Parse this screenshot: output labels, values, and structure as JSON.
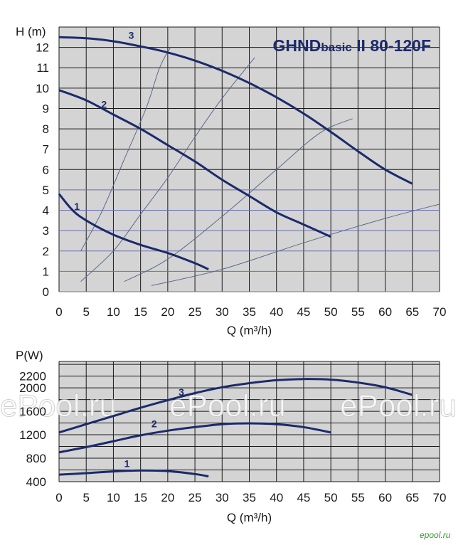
{
  "title": {
    "model": "GHND",
    "sub": "basic",
    "suffix": " II 80-120F"
  },
  "watermark": "ePool.ru",
  "corner_mark": "epool.ru",
  "colors": {
    "curve": "#1c2a6b",
    "system": "#5a6a8a",
    "plot_bg": "#d4d4d4",
    "grid": "#1a1a1a",
    "hgrid_top": "#6a6fb0"
  },
  "chart_data": [
    {
      "type": "line",
      "title": "GHNDbasic II 80-120F",
      "xlabel": "Q (m³/h)",
      "ylabel": "H (m)",
      "xlim": [
        0,
        70
      ],
      "ylim": [
        0,
        13
      ],
      "xticks": [
        0,
        5,
        10,
        15,
        20,
        25,
        30,
        35,
        40,
        45,
        50,
        55,
        60,
        65,
        70
      ],
      "yticks": [
        0,
        1,
        2,
        3,
        4,
        5,
        6,
        7,
        8,
        9,
        10,
        11,
        12
      ],
      "grid": true,
      "series": [
        {
          "name": "1",
          "points": [
            [
              0,
              4.8
            ],
            [
              2.5,
              4.0
            ],
            [
              5,
              3.5
            ],
            [
              10,
              2.8
            ],
            [
              15,
              2.3
            ],
            [
              20,
              1.9
            ],
            [
              25,
              1.4
            ],
            [
              27.5,
              1.1
            ]
          ]
        },
        {
          "name": "2",
          "points": [
            [
              0,
              9.9
            ],
            [
              5,
              9.4
            ],
            [
              10,
              8.7
            ],
            [
              15,
              8.0
            ],
            [
              20,
              7.2
            ],
            [
              25,
              6.4
            ],
            [
              30,
              5.5
            ],
            [
              35,
              4.7
            ],
            [
              40,
              3.9
            ],
            [
              45,
              3.3
            ],
            [
              50,
              2.7
            ]
          ]
        },
        {
          "name": "3",
          "points": [
            [
              0,
              12.5
            ],
            [
              5,
              12.45
            ],
            [
              10,
              12.3
            ],
            [
              15,
              12.05
            ],
            [
              20,
              11.75
            ],
            [
              25,
              11.35
            ],
            [
              30,
              10.85
            ],
            [
              35,
              10.25
            ],
            [
              40,
              9.55
            ],
            [
              45,
              8.75
            ],
            [
              50,
              7.85
            ],
            [
              55,
              6.9
            ],
            [
              60,
              6.0
            ],
            [
              65,
              5.3
            ]
          ]
        }
      ],
      "system_curves": [
        {
          "points": [
            [
              4,
              2.0
            ],
            [
              8,
              4.0
            ],
            [
              12,
              6.5
            ],
            [
              16,
              9.0
            ],
            [
              18.5,
              11.0
            ],
            [
              20.5,
              12.0
            ]
          ]
        },
        {
          "points": [
            [
              4,
              0.5
            ],
            [
              10,
              2.0
            ],
            [
              15,
              3.8
            ],
            [
              20,
              5.6
            ],
            [
              25,
              7.6
            ],
            [
              30,
              9.5
            ],
            [
              36,
              11.5
            ]
          ]
        },
        {
          "points": [
            [
              12,
              0.5
            ],
            [
              20,
              1.6
            ],
            [
              30,
              3.7
            ],
            [
              40,
              6.0
            ],
            [
              48,
              7.8
            ],
            [
              54,
              8.5
            ]
          ]
        },
        {
          "points": [
            [
              17,
              0.3
            ],
            [
              30,
              1.1
            ],
            [
              45,
              2.4
            ],
            [
              60,
              3.6
            ],
            [
              70,
              4.3
            ]
          ]
        }
      ]
    },
    {
      "type": "line",
      "xlabel": "Q (m³/h)",
      "ylabel": "P(W)",
      "xlim": [
        0,
        70
      ],
      "ylim": [
        400,
        2450
      ],
      "xticks": [
        0,
        5,
        10,
        15,
        20,
        25,
        30,
        35,
        40,
        45,
        50,
        55,
        60,
        65,
        70
      ],
      "yticks": [
        400,
        800,
        1200,
        1600,
        2000,
        2200
      ],
      "grid": true,
      "series": [
        {
          "name": "1",
          "points": [
            [
              0,
              520
            ],
            [
              5,
              545
            ],
            [
              10,
              575
            ],
            [
              15,
              590
            ],
            [
              20,
              580
            ],
            [
              25,
              530
            ],
            [
              27.5,
              490
            ]
          ]
        },
        {
          "name": "2",
          "points": [
            [
              0,
              900
            ],
            [
              5,
              990
            ],
            [
              10,
              1090
            ],
            [
              15,
              1190
            ],
            [
              20,
              1270
            ],
            [
              25,
              1330
            ],
            [
              30,
              1380
            ],
            [
              35,
              1395
            ],
            [
              40,
              1380
            ],
            [
              45,
              1330
            ],
            [
              50,
              1240
            ]
          ]
        },
        {
          "name": "3",
          "points": [
            [
              0,
              1240
            ],
            [
              5,
              1380
            ],
            [
              10,
              1520
            ],
            [
              15,
              1660
            ],
            [
              20,
              1790
            ],
            [
              25,
              1910
            ],
            [
              30,
              2010
            ],
            [
              35,
              2080
            ],
            [
              40,
              2130
            ],
            [
              45,
              2150
            ],
            [
              50,
              2140
            ],
            [
              55,
              2090
            ],
            [
              60,
              2010
            ],
            [
              65,
              1880
            ]
          ]
        }
      ]
    }
  ]
}
